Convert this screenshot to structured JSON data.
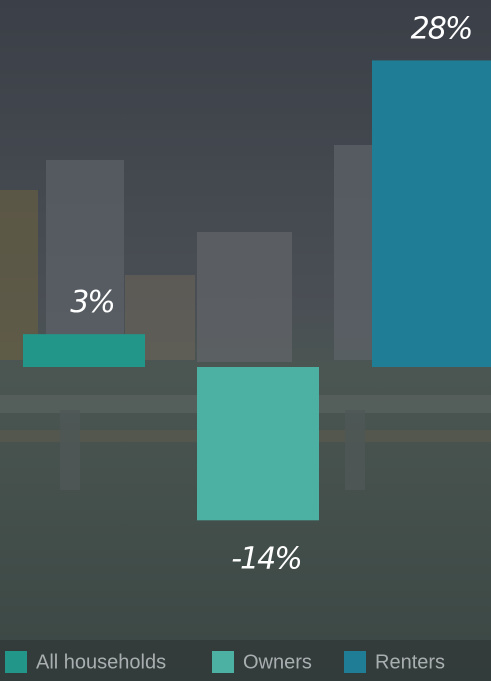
{
  "chart_data": {
    "type": "bar",
    "categories": [
      "All households",
      "Owners",
      "Renters"
    ],
    "values": [
      3,
      -14,
      28
    ],
    "value_labels": [
      "3%",
      "-14%",
      "28%"
    ],
    "colors": [
      "#23968a",
      "#4cb0a3",
      "#1f7e96"
    ],
    "legend": "bottom"
  }
}
